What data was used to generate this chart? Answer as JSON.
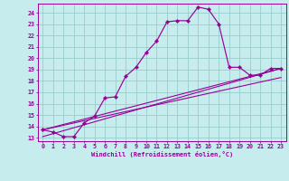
{
  "xlabel": "Windchill (Refroidissement éolien,°C)",
  "xlim": [
    -0.5,
    23.5
  ],
  "ylim": [
    12.7,
    24.8
  ],
  "xticks": [
    0,
    1,
    2,
    3,
    4,
    5,
    6,
    7,
    8,
    9,
    10,
    11,
    12,
    13,
    14,
    15,
    16,
    17,
    18,
    19,
    20,
    21,
    22,
    23
  ],
  "yticks": [
    13,
    14,
    15,
    16,
    17,
    18,
    19,
    20,
    21,
    22,
    23,
    24
  ],
  "bg_color": "#c6ecee",
  "line_color": "#990099",
  "grid_color": "#99cccc",
  "main_series": {
    "x": [
      0,
      1,
      2,
      3,
      4,
      5,
      6,
      7,
      8,
      9,
      10,
      11,
      12,
      13,
      14,
      15,
      16,
      17,
      18,
      19,
      20,
      21,
      22,
      23
    ],
    "y": [
      13.7,
      13.5,
      13.1,
      13.1,
      14.3,
      14.9,
      16.5,
      16.6,
      18.4,
      19.2,
      20.5,
      21.5,
      23.2,
      23.3,
      23.3,
      24.5,
      24.3,
      23.0,
      19.2,
      19.2,
      18.5,
      18.5,
      19.1,
      19.1
    ]
  },
  "straight_lines": [
    {
      "x": [
        0,
        23
      ],
      "y": [
        13.7,
        19.1
      ]
    },
    {
      "x": [
        0,
        23
      ],
      "y": [
        13.7,
        18.3
      ]
    },
    {
      "x": [
        0,
        23
      ],
      "y": [
        13.1,
        19.1
      ]
    }
  ]
}
